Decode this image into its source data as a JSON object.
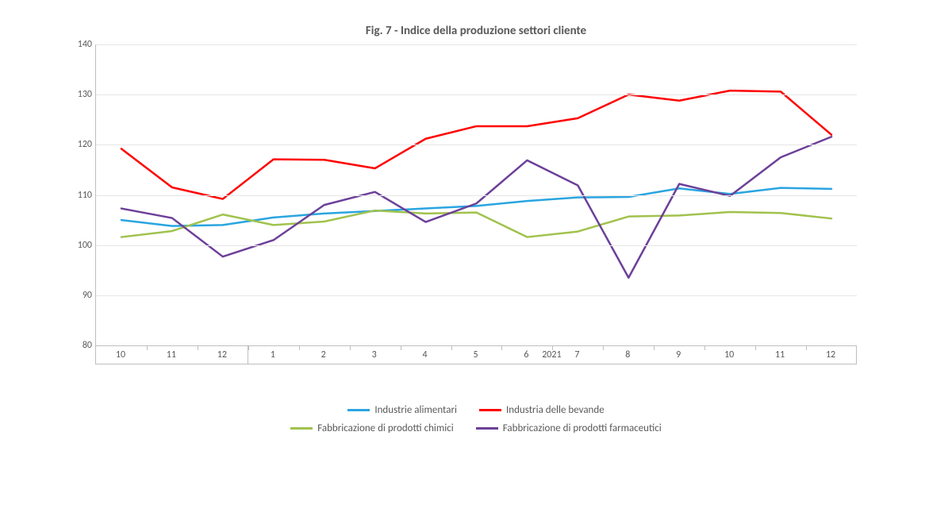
{
  "chart": {
    "type": "line",
    "title": "Fig. 7 - Indice della produzione settori cliente",
    "title_fontsize": 15,
    "title_color": "#595959",
    "background_color": "#ffffff",
    "axis_color": "#bfbfbf",
    "grid_color": "#e6e6e6",
    "label_color": "#595959",
    "label_fontsize": 12,
    "ylim": [
      80,
      140
    ],
    "ytick_step": 10,
    "y_ticks": [
      80,
      90,
      100,
      110,
      120,
      130,
      140
    ],
    "line_width": 2.5,
    "categories": [
      "10",
      "11",
      "12",
      "1",
      "2",
      "3",
      "4",
      "5",
      "6",
      "7",
      "8",
      "9",
      "10",
      "11",
      "12"
    ],
    "year_group_label": "2021",
    "year_group_start_index": 3,
    "year_group_end_index": 14,
    "series": [
      {
        "name": "Industrie alimentari",
        "color": "#2aa5e0",
        "values": [
          105.0,
          103.8,
          104.0,
          105.5,
          106.3,
          106.8,
          107.3,
          107.8,
          108.8,
          109.5,
          109.6,
          111.3,
          110.2,
          111.4,
          111.2
        ]
      },
      {
        "name": "Industria delle bevande",
        "color": "#fe0000",
        "values": [
          119.2,
          111.5,
          109.2,
          117.1,
          117.0,
          115.3,
          121.2,
          123.7,
          123.7,
          125.3,
          130.0,
          128.8,
          130.8,
          130.6,
          122.0
        ]
      },
      {
        "name": "Fabbricazione di prodotti chimici",
        "color": "#a1c24d",
        "values": [
          101.6,
          102.8,
          106.1,
          104.0,
          104.7,
          106.9,
          106.3,
          106.5,
          101.6,
          102.7,
          105.7,
          105.9,
          106.6,
          106.4,
          105.3
        ]
      },
      {
        "name": "Fabbricazione di prodotti farmaceutici",
        "color": "#6c4099",
        "values": [
          107.3,
          105.4,
          97.7,
          101.0,
          108.0,
          110.6,
          104.6,
          108.3,
          116.9,
          111.9,
          93.5,
          112.2,
          109.8,
          117.5,
          121.6
        ]
      }
    ],
    "legend": {
      "position": "bottom",
      "fontsize": 13
    }
  }
}
